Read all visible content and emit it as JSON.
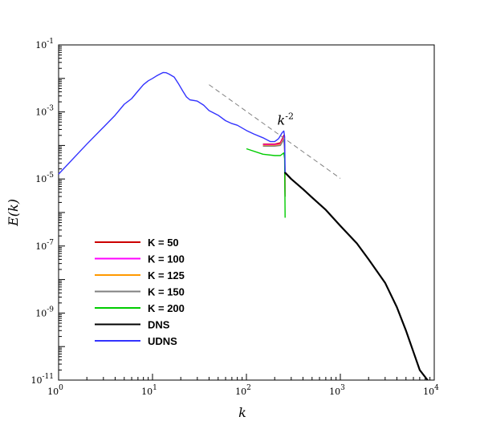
{
  "chart_data": {
    "type": "line",
    "title": "",
    "xlabel": "k",
    "ylabel": "E(k)",
    "x_scale": "log",
    "y_scale": "log",
    "xlim": [
      1,
      10000
    ],
    "ylim": [
      1e-11,
      0.1
    ],
    "x_ticks": [
      {
        "value": 1,
        "base": "10",
        "exp": "0"
      },
      {
        "value": 10,
        "base": "10",
        "exp": "1"
      },
      {
        "value": 100,
        "base": "10",
        "exp": "2"
      },
      {
        "value": 1000,
        "base": "10",
        "exp": "3"
      },
      {
        "value": 10000,
        "base": "10",
        "exp": "4"
      }
    ],
    "y_ticks": [
      {
        "value": 1e-11,
        "base": "10",
        "exp": "-11"
      },
      {
        "value": 1e-09,
        "base": "10",
        "exp": "-9"
      },
      {
        "value": 1e-07,
        "base": "10",
        "exp": "-7"
      },
      {
        "value": 1e-05,
        "base": "10",
        "exp": "-5"
      },
      {
        "value": 0.001,
        "base": "10",
        "exp": "-3"
      },
      {
        "value": 0.1,
        "base": "10",
        "exp": "-1"
      }
    ],
    "grid": false,
    "legend_position": "bottom-left",
    "annotation": {
      "base": "k",
      "exp": "-2",
      "x": 250,
      "y": 0.00058
    },
    "reference_line": {
      "slope": -2,
      "x": [
        40,
        1000
      ],
      "y": [
        0.0065,
        1.04e-05
      ],
      "color": "#808080",
      "style": "dashed"
    },
    "series": [
      {
        "name": "K = 50",
        "color": "#cc0000",
        "points": [
          [
            150,
            0.00011
          ],
          [
            200,
            0.00011
          ],
          [
            230,
            0.00012
          ],
          [
            250,
            0.0002
          ],
          [
            255,
            0.0001
          ],
          [
            258,
            3e-06
          ]
        ]
      },
      {
        "name": "K = 100",
        "color": "#ff00ff",
        "points": [
          [
            150,
            0.000105
          ],
          [
            200,
            0.000105
          ],
          [
            230,
            0.00011
          ],
          [
            250,
            0.00018
          ],
          [
            255,
            9e-05
          ],
          [
            258,
            3e-06
          ]
        ]
      },
      {
        "name": "K = 125",
        "color": "#ff9900",
        "points": [
          [
            150,
            0.0001
          ],
          [
            200,
            0.0001
          ],
          [
            230,
            0.000105
          ],
          [
            250,
            0.00016
          ],
          [
            255,
            8e-05
          ],
          [
            258,
            3e-06
          ]
        ]
      },
      {
        "name": "K = 150",
        "color": "#808080",
        "points": [
          [
            150,
            9.5e-05
          ],
          [
            200,
            9.5e-05
          ],
          [
            230,
            0.0001
          ],
          [
            250,
            0.00015
          ],
          [
            255,
            7e-05
          ],
          [
            258,
            3e-06
          ]
        ]
      },
      {
        "name": "K = 200",
        "color": "#00cc00",
        "points": [
          [
            100,
            8e-05
          ],
          [
            150,
            5.5e-05
          ],
          [
            200,
            5e-05
          ],
          [
            230,
            5e-05
          ],
          [
            250,
            6e-05
          ],
          [
            255,
            4e-05
          ],
          [
            258,
            7e-07
          ]
        ]
      },
      {
        "name": "DNS",
        "color": "#000000",
        "points": [
          [
            255,
            1.6e-05
          ],
          [
            300,
            1e-05
          ],
          [
            400,
            5e-06
          ],
          [
            500,
            2.8e-06
          ],
          [
            700,
            1.2e-06
          ],
          [
            1000,
            4e-07
          ],
          [
            1500,
            1.2e-07
          ],
          [
            2000,
            4e-08
          ],
          [
            3000,
            8e-09
          ],
          [
            4000,
            1.5e-09
          ],
          [
            5000,
            3e-10
          ],
          [
            6000,
            7e-11
          ],
          [
            7000,
            2e-11
          ],
          [
            8500,
            1e-11
          ]
        ]
      },
      {
        "name": "UDNS",
        "color": "#3333ff",
        "points": [
          [
            1,
            1.4e-05
          ],
          [
            2,
            0.00011
          ],
          [
            3,
            0.00035
          ],
          [
            4,
            0.0008
          ],
          [
            5,
            0.0017
          ],
          [
            6,
            0.0025
          ],
          [
            7,
            0.0042
          ],
          [
            8,
            0.0065
          ],
          [
            9,
            0.0085
          ],
          [
            10,
            0.01
          ],
          [
            11,
            0.0118
          ],
          [
            12,
            0.0135
          ],
          [
            13,
            0.015
          ],
          [
            14,
            0.0148
          ],
          [
            15,
            0.0135
          ],
          [
            17,
            0.011
          ],
          [
            19,
            0.0068
          ],
          [
            21,
            0.0042
          ],
          [
            23,
            0.0028
          ],
          [
            25,
            0.0023
          ],
          [
            30,
            0.0021
          ],
          [
            35,
            0.0016
          ],
          [
            40,
            0.0011
          ],
          [
            50,
            0.0008
          ],
          [
            60,
            0.00055
          ],
          [
            70,
            0.00045
          ],
          [
            80,
            0.0004
          ],
          [
            100,
            0.00028
          ],
          [
            120,
            0.00022
          ],
          [
            150,
            0.00017
          ],
          [
            180,
            0.00013
          ],
          [
            200,
            0.00013
          ],
          [
            220,
            0.00016
          ],
          [
            240,
            0.00024
          ],
          [
            250,
            0.00027
          ],
          [
            255,
            0.00018
          ],
          [
            258,
            1.6e-05
          ]
        ]
      }
    ]
  }
}
